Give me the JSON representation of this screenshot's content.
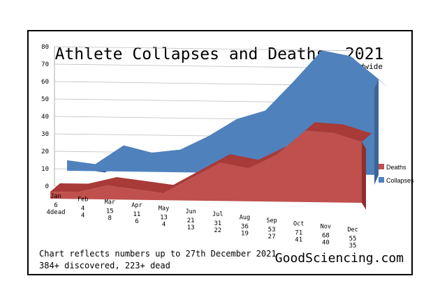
{
  "chart_data": {
    "type": "area",
    "title": "Athlete Collapses and Deaths, 2021",
    "subtitle": "Worldwide",
    "categories": [
      "Jan",
      "Feb",
      "Mar",
      "Apr",
      "May",
      "Jun",
      "Jul",
      "Aug",
      "Sep",
      "Oct",
      "Nov",
      "Dec"
    ],
    "series": [
      {
        "name": "Deaths",
        "color": "#c0504d",
        "values": [
          4,
          4,
          8,
          6,
          4,
          13,
          22,
          19,
          27,
          41,
          40,
          35
        ]
      },
      {
        "name": "Collapses",
        "color": "#4f81bd",
        "values": [
          6,
          4,
          15,
          11,
          13,
          21,
          31,
          36,
          53,
          71,
          68,
          55
        ]
      }
    ],
    "value_labels": [
      {
        "collapses": "6",
        "deaths": "4dead"
      },
      {
        "collapses": "4",
        "deaths": "4"
      },
      {
        "collapses": "15",
        "deaths": "8"
      },
      {
        "collapses": "11",
        "deaths": "6"
      },
      {
        "collapses": "13",
        "deaths": "4"
      },
      {
        "collapses": "21",
        "deaths": "13"
      },
      {
        "collapses": "31",
        "deaths": "22"
      },
      {
        "collapses": "36",
        "deaths": "19"
      },
      {
        "collapses": "53",
        "deaths": "27"
      },
      {
        "collapses": "71",
        "deaths": "41"
      },
      {
        "collapses": "68",
        "deaths": "40"
      },
      {
        "collapses": "55",
        "deaths": "35"
      }
    ],
    "ylim": [
      0,
      80
    ],
    "yticks": [
      0,
      10,
      20,
      30,
      40,
      50,
      60,
      70,
      80
    ],
    "grid": true,
    "legend_position": "right",
    "three_d": true
  },
  "footer": {
    "note_line1": "Chart reflects numbers up to 27th December 2021",
    "note_line2": "384+ discovered, 223+ dead",
    "brand": "GoodSciencing.com"
  }
}
